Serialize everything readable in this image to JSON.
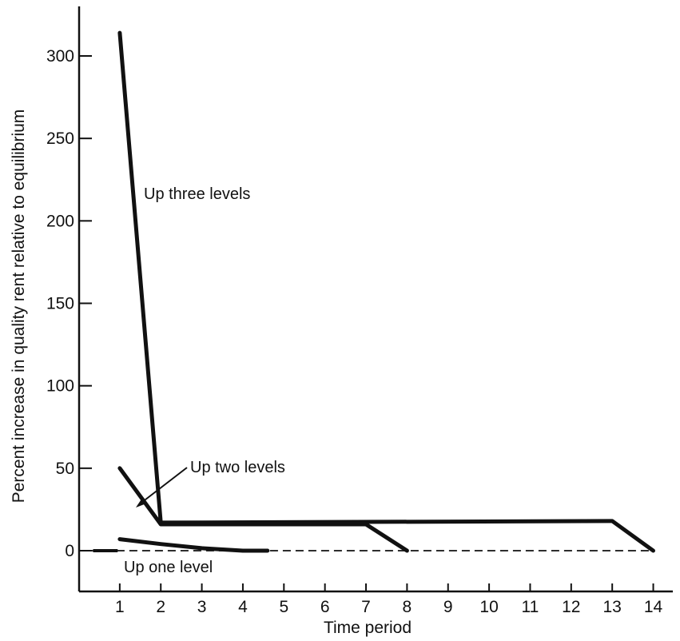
{
  "chart_data": {
    "type": "line",
    "title": "",
    "xlabel": "Time period",
    "ylabel": "Percent increase in quality rent relative to equilibrium",
    "x_ticks": [
      1,
      2,
      3,
      4,
      5,
      6,
      7,
      8,
      9,
      10,
      11,
      12,
      13,
      14
    ],
    "y_ticks": [
      0,
      50,
      100,
      150,
      200,
      250,
      300
    ],
    "xlim": [
      0,
      14.5
    ],
    "ylim": [
      -25,
      330
    ],
    "grid": false,
    "legend": "none",
    "baseline": {
      "y": 0,
      "style": "dashed",
      "x_start": 0.3,
      "x_end": 14
    },
    "series": [
      {
        "name": "Up three levels",
        "x": [
          1,
          2,
          13,
          14
        ],
        "y": [
          314,
          17,
          18,
          0
        ]
      },
      {
        "name": "Up two levels",
        "x": [
          1,
          2,
          7,
          8
        ],
        "y": [
          50,
          16,
          16,
          0
        ]
      },
      {
        "name": "Up one level",
        "x": [
          1,
          2,
          3,
          4,
          4.6
        ],
        "y": [
          7,
          4,
          1.5,
          0,
          0
        ]
      }
    ],
    "annotations": [
      {
        "text": "Up three levels",
        "series": 0
      },
      {
        "text": "Up two levels",
        "series": 1,
        "arrow": true
      },
      {
        "text": "Up one level",
        "series": 2
      }
    ],
    "colors": {
      "line": "#111111",
      "background": "#ffffff"
    }
  }
}
